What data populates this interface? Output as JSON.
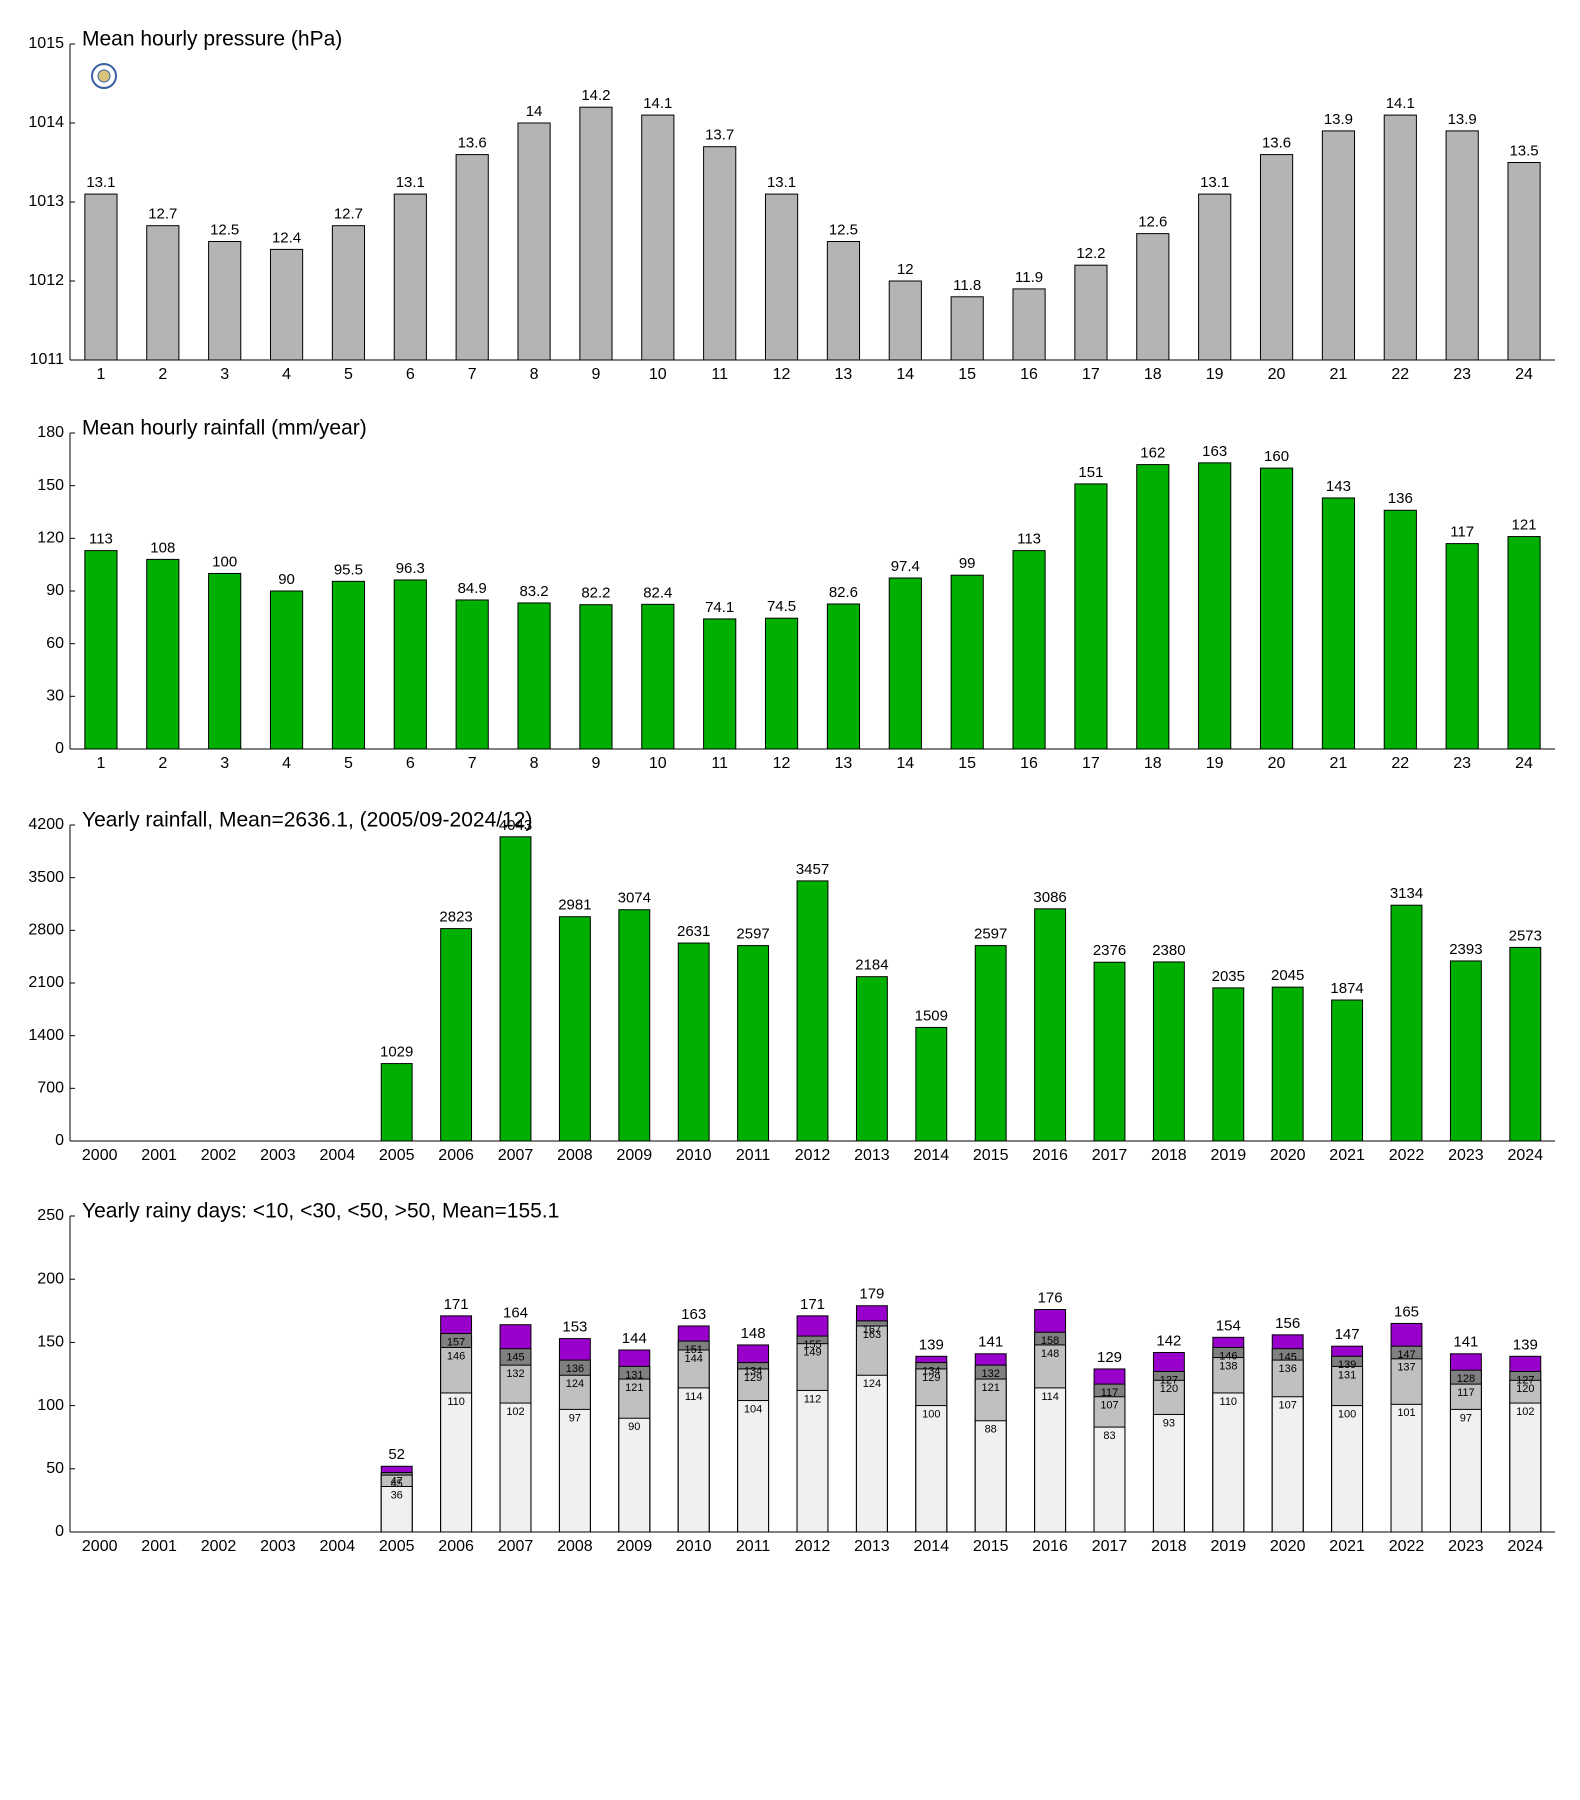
{
  "chart_data": [
    {
      "type": "bar",
      "title": "Mean hourly pressure (hPa)",
      "categories": [
        "1",
        "2",
        "3",
        "4",
        "5",
        "6",
        "7",
        "8",
        "9",
        "10",
        "11",
        "12",
        "13",
        "14",
        "15",
        "16",
        "17",
        "18",
        "19",
        "20",
        "21",
        "22",
        "23",
        "24"
      ],
      "values": [
        1013.1,
        1012.7,
        1012.5,
        1012.4,
        1012.7,
        1013.1,
        1013.6,
        1014,
        1014.2,
        1014.1,
        1013.7,
        1013.1,
        1012.5,
        1012,
        1011.8,
        1011.9,
        1012.2,
        1012.6,
        1013.1,
        1013.6,
        1013.9,
        1014.1,
        1013.9,
        1013.5
      ],
      "value_labels": [
        "13.1",
        "12.7",
        "12.5",
        "12.4",
        "12.7",
        "13.1",
        "13.6",
        "14",
        "14.2",
        "14.1",
        "13.7",
        "13.1",
        "12.5",
        "12",
        "11.8",
        "11.9",
        "12.2",
        "12.6",
        "13.1",
        "13.6",
        "13.9",
        "14.1",
        "13.9",
        "13.5"
      ],
      "color": "#b4b4b4",
      "ylim": [
        1011,
        1015
      ],
      "yticks": [
        1011,
        1012,
        1013,
        1014,
        1015
      ],
      "grid": false
    },
    {
      "type": "bar",
      "title": "Mean hourly rainfall (mm/year)",
      "categories": [
        "1",
        "2",
        "3",
        "4",
        "5",
        "6",
        "7",
        "8",
        "9",
        "10",
        "11",
        "12",
        "13",
        "14",
        "15",
        "16",
        "17",
        "18",
        "19",
        "20",
        "21",
        "22",
        "23",
        "24"
      ],
      "values": [
        113,
        108,
        100,
        90,
        95.5,
        96.3,
        84.9,
        83.2,
        82.2,
        82.4,
        74.1,
        74.5,
        82.6,
        97.4,
        99,
        113,
        151,
        162,
        163,
        160,
        143,
        136,
        117,
        121
      ],
      "color": "#00b000",
      "ylim": [
        0,
        180
      ],
      "yticks": [
        0,
        30,
        60,
        90,
        120,
        150,
        180
      ],
      "grid": false
    },
    {
      "type": "bar",
      "title": "Yearly rainfall, Mean=2636.1, (2005/09-2024/12)",
      "categories": [
        "2000",
        "2001",
        "2002",
        "2003",
        "2004",
        "2005",
        "2006",
        "2007",
        "2008",
        "2009",
        "2010",
        "2011",
        "2012",
        "2013",
        "2014",
        "2015",
        "2016",
        "2017",
        "2018",
        "2019",
        "2020",
        "2021",
        "2022",
        "2023",
        "2024"
      ],
      "values": [
        null,
        null,
        null,
        null,
        null,
        1029,
        2823,
        4043,
        2981,
        3074,
        2631,
        2597,
        3457,
        2184,
        1509,
        2597,
        3086,
        2376,
        2380,
        2035,
        2045,
        1874,
        3134,
        2393,
        2573
      ],
      "color": "#00b000",
      "ylim": [
        0,
        4200
      ],
      "yticks": [
        0,
        700,
        1400,
        2100,
        2800,
        3500,
        4200
      ],
      "grid": false
    },
    {
      "type": "bar",
      "title": "Yearly rainy days: <10, <30, <50, >50, Mean=155.1",
      "categories": [
        "2000",
        "2001",
        "2002",
        "2003",
        "2004",
        "2005",
        "2006",
        "2007",
        "2008",
        "2009",
        "2010",
        "2011",
        "2012",
        "2013",
        "2014",
        "2015",
        "2016",
        "2017",
        "2018",
        "2019",
        "2020",
        "2021",
        "2022",
        "2023",
        "2024"
      ],
      "series": [
        {
          "color": "#f0f0f0",
          "values": [
            null,
            null,
            null,
            null,
            null,
            36,
            110,
            102,
            97,
            90,
            114,
            104,
            112,
            124,
            100,
            88,
            114,
            83,
            93,
            110,
            107,
            100,
            101,
            97,
            102
          ]
        },
        {
          "color": "#c0c0c0",
          "values": [
            null,
            null,
            null,
            null,
            null,
            45,
            146,
            132,
            124,
            121,
            144,
            129,
            149,
            163,
            129,
            121,
            148,
            107,
            120,
            138,
            136,
            131,
            137,
            117,
            120
          ]
        },
        {
          "color": "#808080",
          "values": [
            null,
            null,
            null,
            null,
            null,
            47,
            157,
            145,
            136,
            131,
            151,
            134,
            155,
            167,
            134,
            132,
            158,
            117,
            127,
            146,
            145,
            139,
            147,
            128,
            127
          ]
        },
        {
          "color": "#9900cc",
          "values": [
            null,
            null,
            null,
            null,
            null,
            52,
            171,
            164,
            153,
            144,
            163,
            148,
            171,
            179,
            139,
            141,
            176,
            129,
            142,
            154,
            156,
            147,
            165,
            141,
            139
          ]
        }
      ],
      "ylim": [
        0,
        250
      ],
      "yticks": [
        0,
        50,
        100,
        150,
        200,
        250
      ],
      "grid": false
    }
  ]
}
